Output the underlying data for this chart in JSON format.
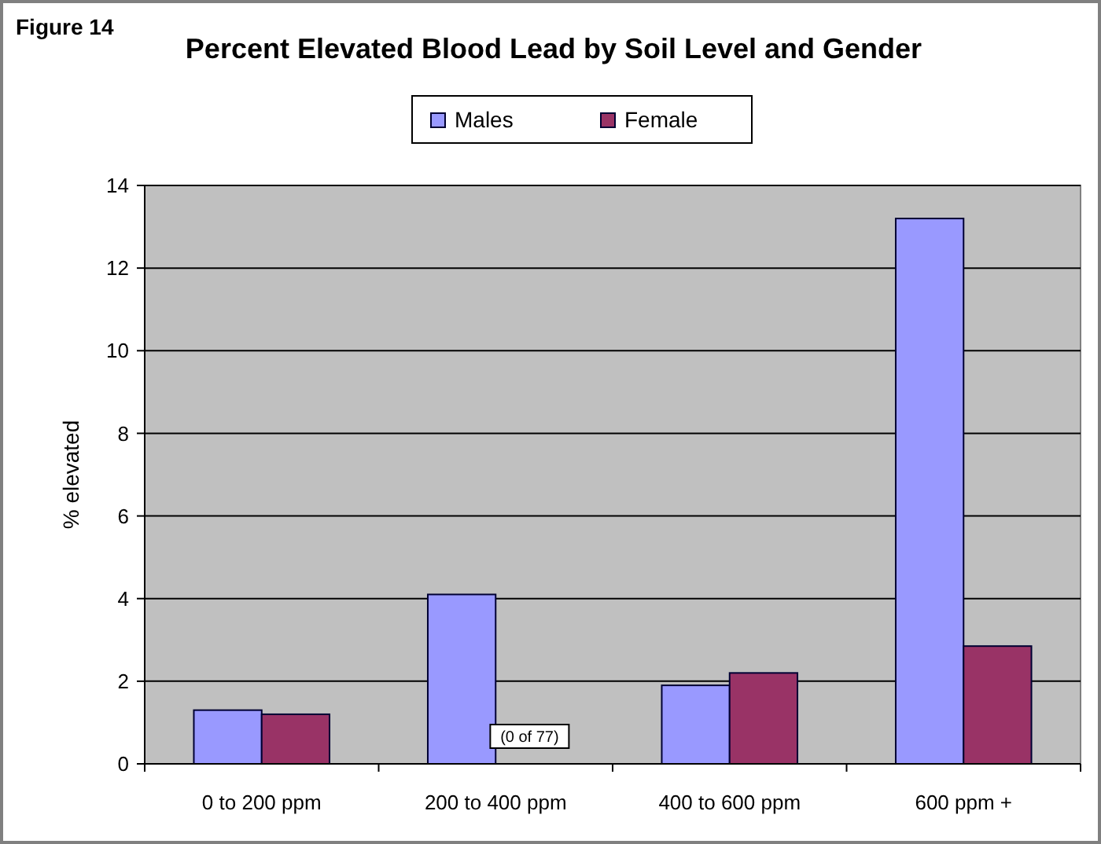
{
  "chart_data": {
    "type": "bar",
    "title": "Percent Elevated Blood Lead by Soil Level and Gender",
    "ylabel": "% elevated",
    "categories": [
      "0 to 200 ppm",
      "200 to 400 ppm",
      "400 to 600 ppm",
      "600 ppm +"
    ],
    "series": [
      {
        "name": "Males",
        "color": "#9999ff",
        "values": [
          1.3,
          4.1,
          1.9,
          13.2
        ]
      },
      {
        "name": "Female",
        "color": "#993366",
        "values": [
          1.2,
          0,
          2.2,
          2.85
        ]
      }
    ],
    "ylim": [
      0,
      14
    ],
    "yticks": [
      0,
      2,
      4,
      6,
      8,
      10,
      12,
      14
    ],
    "grid": "y",
    "legend": "top",
    "annotations": [
      "Figure 14",
      {
        "text": "(0 of 77)",
        "x": "200 to 400 ppm",
        "y": 0
      }
    ]
  }
}
